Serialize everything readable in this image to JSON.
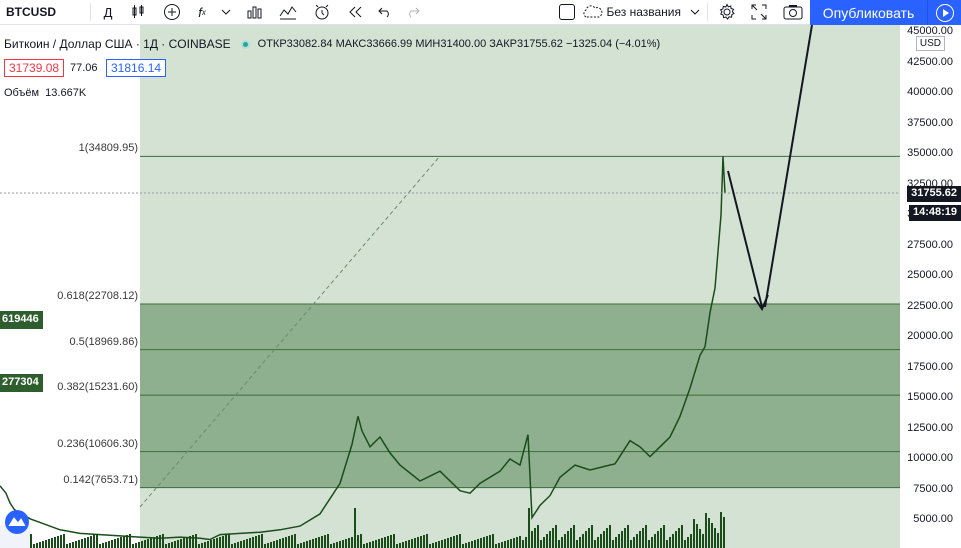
{
  "toolbar": {
    "symbol": "BTCUSD",
    "interval": "Д",
    "layout_name": "Без названия",
    "publish_label": "Опубликовать"
  },
  "legend": {
    "title": "Биткоин / Доллар США · 1Д · COINBASE",
    "open_label": "ОТКР",
    "open": "33082.84",
    "high_label": "МАКС",
    "high": "33666.99",
    "low_label": "МИН",
    "low": "31400.00",
    "close_label": "ЗАКР",
    "close": "31755.62",
    "change": "−1325.04 (−4.01%)",
    "bid": "31739.08",
    "spread": "77.06",
    "ask": "31816.14",
    "volume_label": "Объём",
    "volume": "13.667K"
  },
  "price_axis": {
    "currency": "USD",
    "ticks": [
      "45000.00",
      "42500.00",
      "40000.00",
      "37500.00",
      "35000.00",
      "32500.00",
      "30000.00",
      "27500.00",
      "25000.00",
      "22500.00",
      "20000.00",
      "17500.00",
      "15000.00",
      "12500.00",
      "10000.00",
      "7500.00",
      "5000.00"
    ],
    "current_price": "31755.62",
    "countdown": "14:48:19"
  },
  "fib_levels": [
    {
      "label": "1(34809.95)",
      "price": 34809.95
    },
    {
      "label": "0.618(22708.12)",
      "price": 22708.12
    },
    {
      "label": "0.5(18969.86)",
      "price": 18969.86
    },
    {
      "label": "0.382(15231.60)",
      "price": 15231.6
    },
    {
      "label": "0.236(10606.30)",
      "price": 10606.3
    },
    {
      "label": "0.142(7653.71)",
      "price": 7653.71
    }
  ],
  "left_tags": [
    "619446",
    "277304"
  ],
  "colors": {
    "accent": "#2962ff",
    "fib_zone_light": "#d4e2d4",
    "fib_zone_dark": "#8fb08f",
    "fib_line": "#3d6b3d",
    "candles": "#1b4d1b",
    "bid_color": "#f23645",
    "ask_color": "#2962ff"
  },
  "icons": [
    "interval",
    "candles-icon",
    "add-indicator-icon",
    "fx-icon",
    "chevron-down-icon",
    "bar-chart-icon",
    "compare-icon",
    "alert-icon",
    "replay-icon",
    "undo-icon",
    "redo-icon",
    "checkbox",
    "cloud-icon",
    "gear-icon",
    "fullscreen-icon",
    "camera-icon",
    "play-icon"
  ]
}
